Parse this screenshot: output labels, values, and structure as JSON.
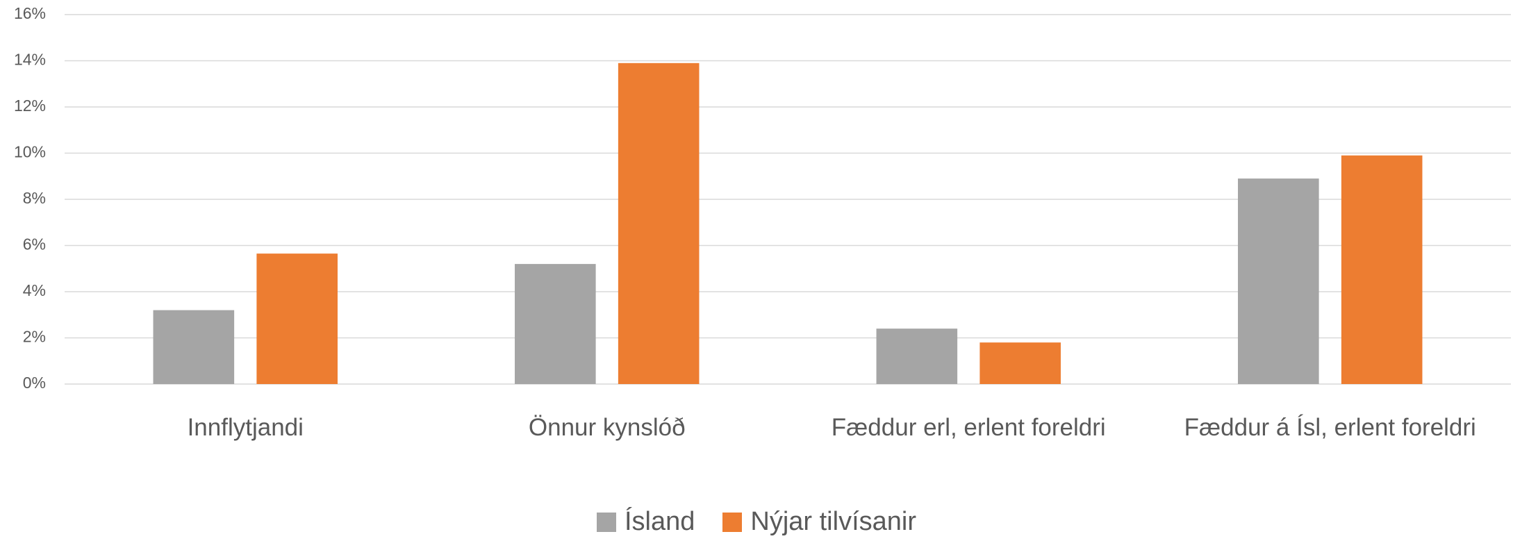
{
  "chart_data": {
    "type": "bar",
    "categories": [
      "Innflytjandi",
      "Önnur kynslóð",
      "Fæddur erl, erlent foreldri",
      "Fæddur á Ísl, erlent foreldri"
    ],
    "series": [
      {
        "name": "Ísland",
        "color": "#a5a5a5",
        "values": [
          3.2,
          5.2,
          2.4,
          8.9
        ]
      },
      {
        "name": "Nýjar tilvísanir",
        "color": "#ed7d31",
        "values": [
          5.65,
          13.9,
          1.8,
          9.9
        ]
      }
    ],
    "ylim": [
      0,
      16
    ],
    "yticks": [
      {
        "value": 0,
        "label": "0%"
      },
      {
        "value": 2,
        "label": "2%"
      },
      {
        "value": 4,
        "label": "4%"
      },
      {
        "value": 6,
        "label": "6%"
      },
      {
        "value": 8,
        "label": "8%"
      },
      {
        "value": 10,
        "label": "10%"
      },
      {
        "value": 12,
        "label": "12%"
      },
      {
        "value": 14,
        "label": "14%"
      },
      {
        "value": 16,
        "label": "16%"
      }
    ],
    "grid": true,
    "legend": "bottom"
  }
}
